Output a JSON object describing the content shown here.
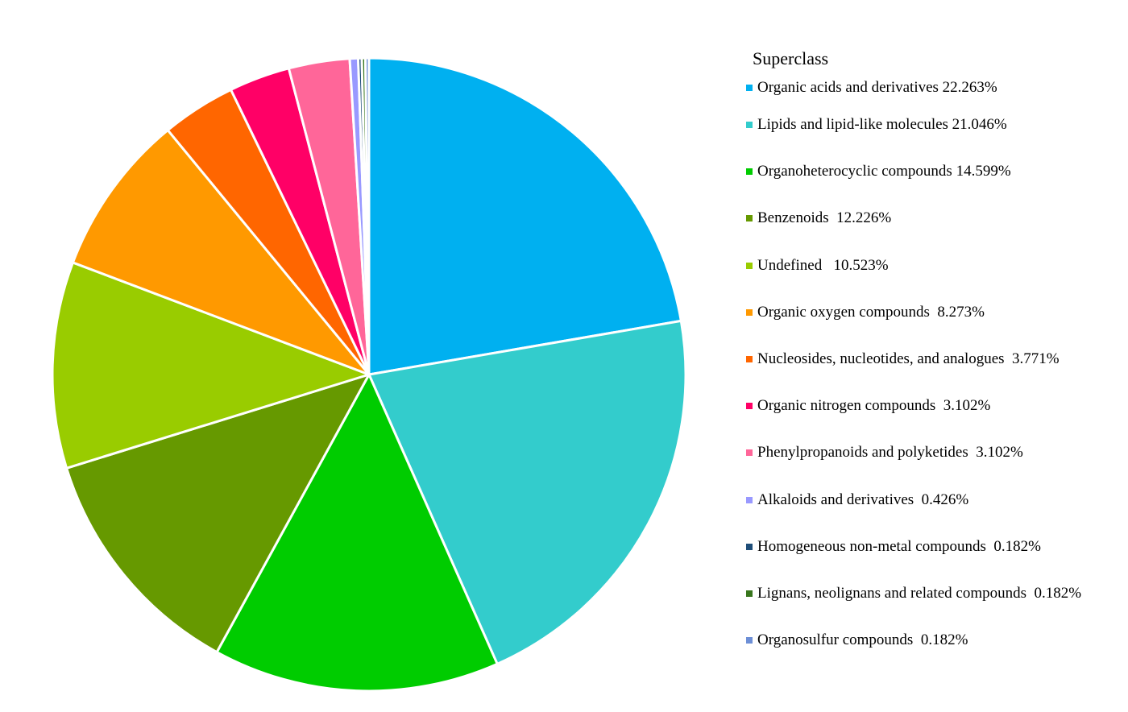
{
  "chart_data": {
    "type": "pie",
    "legend_title": "Superclass",
    "legend_position": "right",
    "slices": [
      {
        "label": "Organic acids and derivatives 22.263%",
        "value": 22.263,
        "color": "#00B0F0"
      },
      {
        "label": "Lipids and lipid-like molecules 21.046%",
        "value": 21.046,
        "color": "#33CCCC"
      },
      {
        "label": "Organoheterocyclic compounds 14.599%",
        "value": 14.599,
        "color": "#00CC00"
      },
      {
        "label": "Benzenoids  12.226%",
        "value": 12.226,
        "color": "#669900"
      },
      {
        "label": "Undefined   10.523%",
        "value": 10.523,
        "color": "#99CC00"
      },
      {
        "label": "Organic oxygen compounds  8.273%",
        "value": 8.273,
        "color": "#FF9900"
      },
      {
        "label": "Nucleosides, nucleotides, and analogues  3.771%",
        "value": 3.771,
        "color": "#FF6600"
      },
      {
        "label": "Organic nitrogen compounds  3.102%",
        "value": 3.102,
        "color": "#FF0066"
      },
      {
        "label": "Phenylpropanoids and polyketides  3.102%",
        "value": 3.102,
        "color": "#FF6699"
      },
      {
        "label": "Alkaloids and derivatives  0.426%",
        "value": 0.426,
        "color": "#9999FF"
      },
      {
        "label": "Homogeneous non-metal compounds  0.182%",
        "value": 0.182,
        "color": "#1F4E79"
      },
      {
        "label": "Lignans, neolignans and related compounds  0.182%",
        "value": 0.182,
        "color": "#38761D"
      },
      {
        "label": "Organosulfur compounds  0.182%",
        "value": 0.182,
        "color": "#6D8FD6"
      }
    ]
  }
}
